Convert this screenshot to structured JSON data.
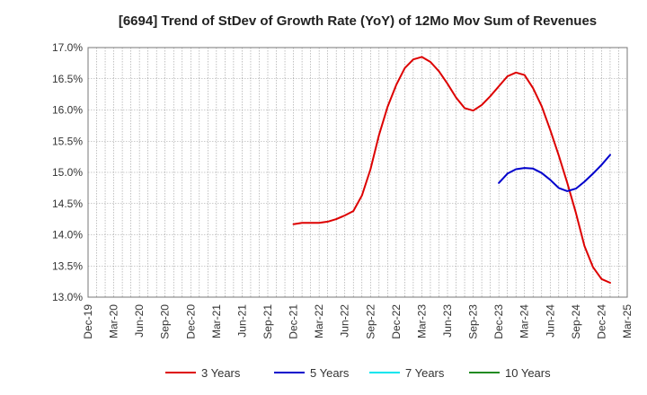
{
  "chart_data": {
    "type": "line",
    "title": "[6694]  Trend of StDev of Growth Rate (YoY) of 12Mo Mov Sum of Revenues",
    "xlabel": "",
    "ylabel": "",
    "ylim": [
      13.0,
      17.0
    ],
    "yticks": [
      13.0,
      13.5,
      14.0,
      14.5,
      15.0,
      15.5,
      16.0,
      16.5,
      17.0
    ],
    "ytick_labels": [
      "13.0%",
      "13.5%",
      "14.0%",
      "14.5%",
      "15.0%",
      "15.5%",
      "16.0%",
      "16.5%",
      "17.0%"
    ],
    "x_start": "Dec-19",
    "x_months": 63,
    "xtick_labels": [
      "Dec-19",
      "Mar-20",
      "Jun-20",
      "Sep-20",
      "Dec-20",
      "Mar-21",
      "Jun-21",
      "Sep-21",
      "Dec-21",
      "Mar-22",
      "Jun-22",
      "Sep-22",
      "Dec-22",
      "Mar-23",
      "Jun-23",
      "Sep-23",
      "Dec-23",
      "Mar-24",
      "Jun-24",
      "Sep-24",
      "Dec-24",
      "Mar-25"
    ],
    "grid": true,
    "legend_position": "bottom",
    "series": [
      {
        "name": "3 Years",
        "color": "#dd0000",
        "start_index": 24,
        "values": [
          14.17,
          14.19,
          14.19,
          14.19,
          14.21,
          14.25,
          14.31,
          14.38,
          14.63,
          15.05,
          15.6,
          16.05,
          16.4,
          16.67,
          16.81,
          16.85,
          16.77,
          16.62,
          16.42,
          16.2,
          16.03,
          15.99,
          16.08,
          16.22,
          16.38,
          16.54,
          16.6,
          16.56,
          16.35,
          16.06,
          15.68,
          15.27,
          14.83,
          14.35,
          13.82,
          13.48,
          13.29,
          13.23
        ]
      },
      {
        "name": "5 Years",
        "color": "#0000cc",
        "start_index": 48,
        "values": [
          14.83,
          14.98,
          15.05,
          15.07,
          15.06,
          14.99,
          14.88,
          14.75,
          14.7,
          14.74,
          14.85,
          14.98,
          15.12,
          15.28
        ]
      },
      {
        "name": "7 Years",
        "color": "#00e5ee",
        "start_index": 0,
        "values": []
      },
      {
        "name": "10 Years",
        "color": "#228b22",
        "start_index": 0,
        "values": []
      }
    ]
  }
}
